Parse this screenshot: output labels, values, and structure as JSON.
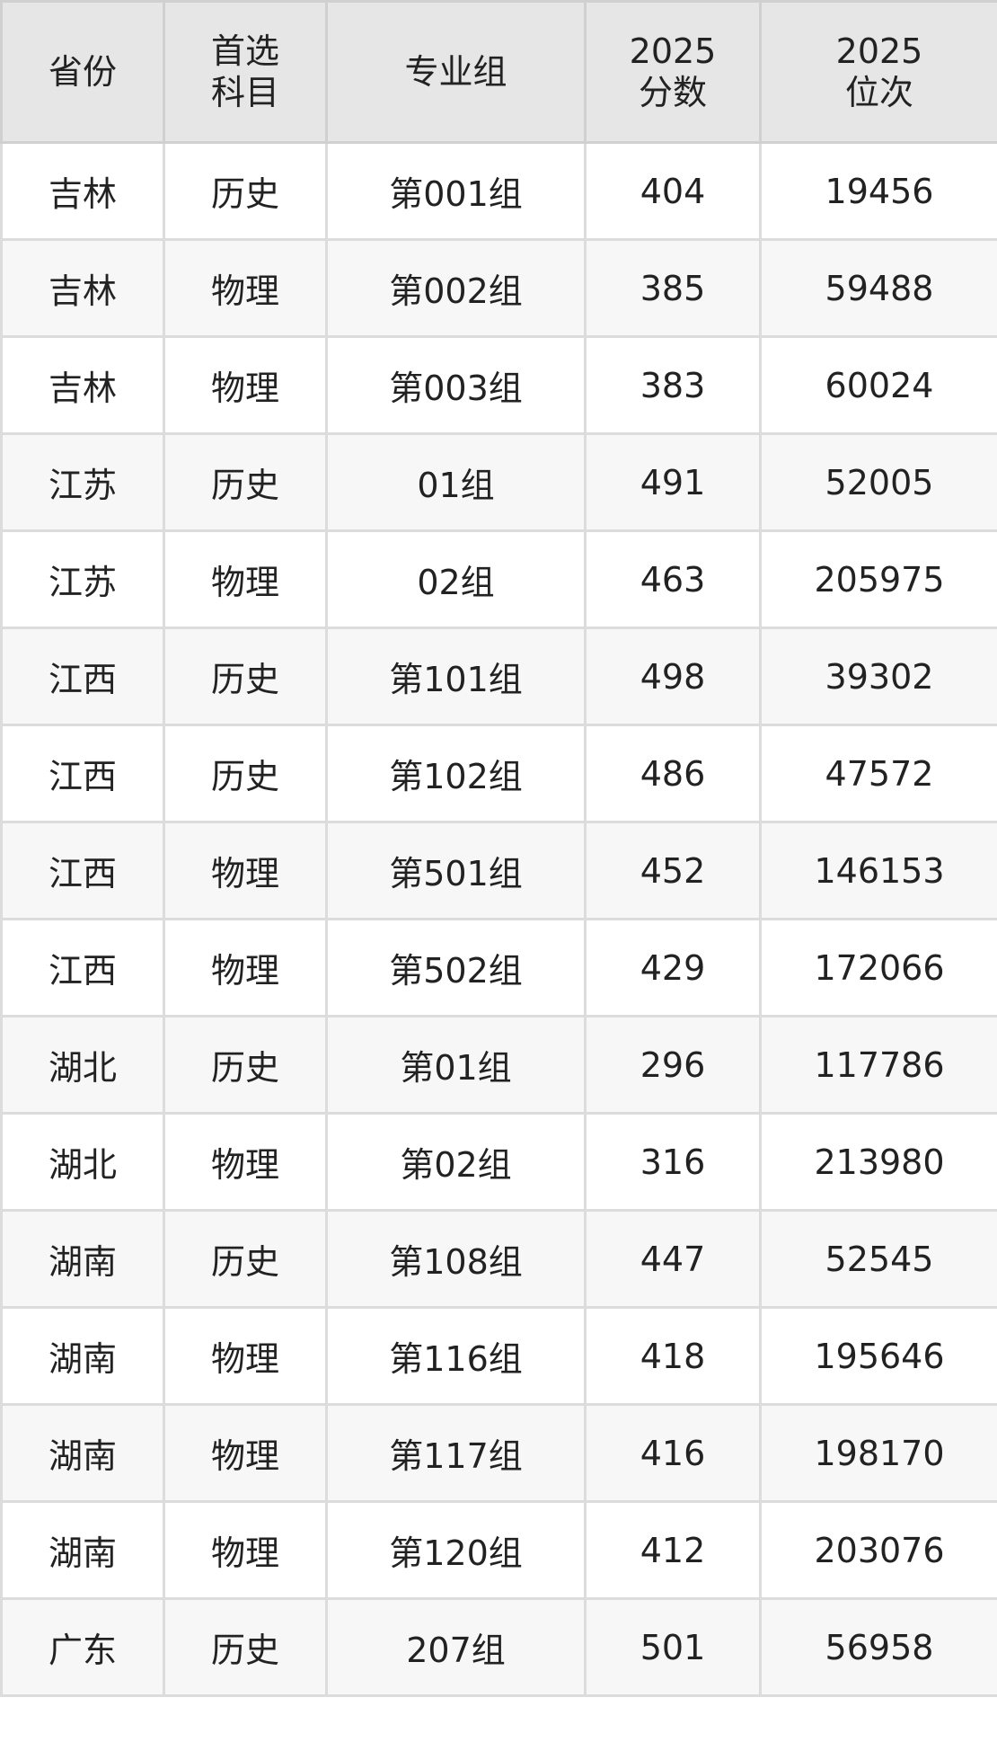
{
  "table": {
    "headers": [
      {
        "lines": [
          "省份"
        ]
      },
      {
        "lines": [
          "首选",
          "科目"
        ]
      },
      {
        "lines": [
          "专业组"
        ]
      },
      {
        "lines": [
          "2025",
          "分数"
        ]
      },
      {
        "lines": [
          "2025",
          "位次"
        ]
      }
    ],
    "rows": [
      [
        "吉林",
        "历史",
        "第001组",
        "404",
        "19456"
      ],
      [
        "吉林",
        "物理",
        "第002组",
        "385",
        "59488"
      ],
      [
        "吉林",
        "物理",
        "第003组",
        "383",
        "60024"
      ],
      [
        "江苏",
        "历史",
        "01组",
        "491",
        "52005"
      ],
      [
        "江苏",
        "物理",
        "02组",
        "463",
        "205975"
      ],
      [
        "江西",
        "历史",
        "第101组",
        "498",
        "39302"
      ],
      [
        "江西",
        "历史",
        "第102组",
        "486",
        "47572"
      ],
      [
        "江西",
        "物理",
        "第501组",
        "452",
        "146153"
      ],
      [
        "江西",
        "物理",
        "第502组",
        "429",
        "172066"
      ],
      [
        "湖北",
        "历史",
        "第01组",
        "296",
        "117786"
      ],
      [
        "湖北",
        "物理",
        "第02组",
        "316",
        "213980"
      ],
      [
        "湖南",
        "历史",
        "第108组",
        "447",
        "52545"
      ],
      [
        "湖南",
        "物理",
        "第116组",
        "418",
        "195646"
      ],
      [
        "湖南",
        "物理",
        "第117组",
        "416",
        "198170"
      ],
      [
        "湖南",
        "物理",
        "第120组",
        "412",
        "203076"
      ],
      [
        "广东",
        "历史",
        "207组",
        "501",
        "56958"
      ]
    ]
  }
}
